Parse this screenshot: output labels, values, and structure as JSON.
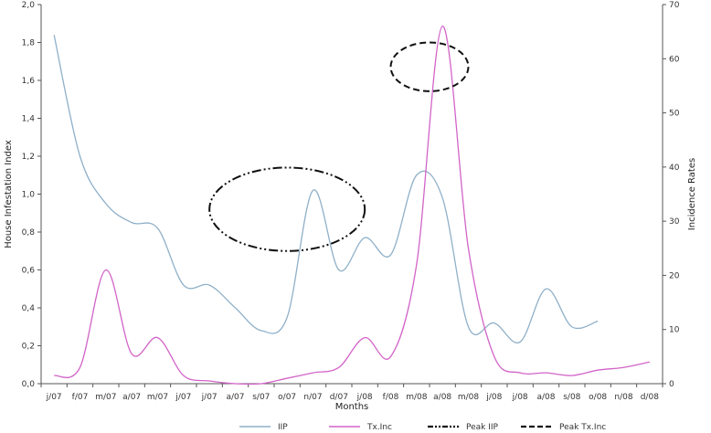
{
  "chart_data": {
    "type": "line",
    "categories": [
      "j/07",
      "f/07",
      "m/07",
      "a/07",
      "m/07",
      "j/07",
      "j/07",
      "a/07",
      "s/07",
      "o/07",
      "n/07",
      "d/07",
      "j/08",
      "f/08",
      "m/08",
      "a/08",
      "m/08",
      "j/08",
      "j/08",
      "a/08",
      "s/08",
      "o/08",
      "n/08",
      "d/08"
    ],
    "xlabel": "Months",
    "ylabel_left": "House Infestation Index",
    "ylabel_right": "Incidence Rates",
    "y_left_range": [
      0,
      2.0
    ],
    "y_left_ticks": [
      "0,0",
      "0,2",
      "0,4",
      "0,6",
      "0,8",
      "1,0",
      "1,2",
      "1,4",
      "1,6",
      "1,8",
      "2,0"
    ],
    "y_right_range": [
      0,
      70
    ],
    "y_right_ticks": [
      "0",
      "10",
      "20",
      "30",
      "40",
      "50",
      "60",
      "70"
    ],
    "grid": false,
    "legend_position": "bottom",
    "series": [
      {
        "name": "IIP",
        "axis": "left",
        "color": "#8fb0c8",
        "values": [
          1.84,
          1.2,
          0.95,
          0.85,
          0.82,
          0.52,
          0.52,
          0.4,
          0.28,
          0.35,
          1.02,
          0.6,
          0.77,
          0.68,
          1.1,
          0.98,
          0.3,
          0.32,
          0.22,
          0.5,
          0.3,
          0.33,
          null,
          null
        ]
      },
      {
        "name": "Tx.Inc",
        "axis": "right",
        "color": "#d264c8",
        "values": [
          1.5,
          3,
          21,
          5.5,
          8.5,
          1.5,
          0.5,
          0,
          0,
          1,
          2,
          3,
          8.5,
          5,
          22,
          66,
          25,
          5,
          2,
          2,
          1.5,
          2.5,
          3,
          4
        ]
      }
    ],
    "annotations": [
      {
        "name": "Peak IIP",
        "style": "dash-dot",
        "center_x_category": 9,
        "center_y_left": 0.92,
        "half_width_categories": 3,
        "half_height_left": 0.22
      },
      {
        "name": "Peak Tx.Inc",
        "style": "dashed",
        "center_x_category": 14.5,
        "center_y_right": 58.5,
        "half_width_categories": 1.5,
        "half_height_right": 4.5
      }
    ],
    "legend": [
      {
        "label": "IIP",
        "style": "solid",
        "color": "#8fb0c8"
      },
      {
        "label": "Tx.Inc",
        "style": "solid",
        "color": "#d264c8"
      },
      {
        "label": "Peak IIP",
        "style": "dash-dot",
        "color": "#111111"
      },
      {
        "label": "Peak Tx.Inc",
        "style": "dashed",
        "color": "#111111"
      }
    ]
  }
}
